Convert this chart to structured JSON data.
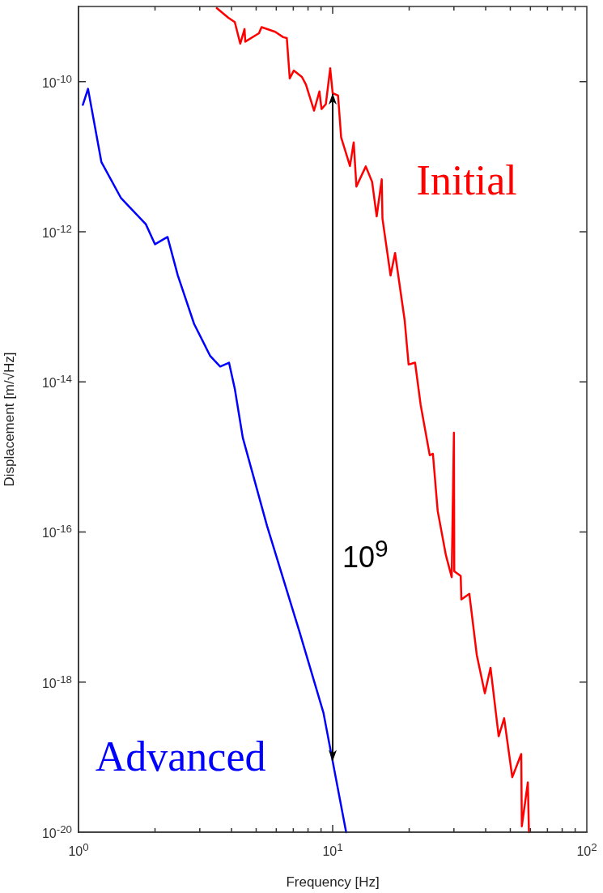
{
  "chart_data": {
    "type": "line",
    "xlabel": "Frequency [Hz]",
    "ylabel": "Displacement [m/√Hz]",
    "log": "xy",
    "legend": false,
    "marker": "none",
    "xlim": [
      1,
      100
    ],
    "ylim": [
      1e-20,
      1e-09
    ],
    "xticks": [
      {
        "value": 1,
        "label": "10$^{0}$"
      },
      {
        "value": 2,
        "label": null
      },
      {
        "value": 3,
        "label": null
      },
      {
        "value": 4,
        "label": null
      },
      {
        "value": 5,
        "label": null
      },
      {
        "value": 6,
        "label": null
      },
      {
        "value": 7,
        "label": null
      },
      {
        "value": 8,
        "label": null
      },
      {
        "value": 9,
        "label": null
      },
      {
        "value": 10,
        "label": "10$^{1}$"
      },
      {
        "value": 20,
        "label": null
      },
      {
        "value": 30,
        "label": null
      },
      {
        "value": 40,
        "label": null
      },
      {
        "value": 50,
        "label": null
      },
      {
        "value": 60,
        "label": null
      },
      {
        "value": 70,
        "label": null
      },
      {
        "value": 80,
        "label": null
      },
      {
        "value": 90,
        "label": null
      },
      {
        "value": 100,
        "label": "10$^{2}$"
      }
    ],
    "yticks": [
      {
        "value": 1e-20,
        "label": "10$^{-20}$"
      },
      {
        "value": 1e-18,
        "label": "10$^{-18}$"
      },
      {
        "value": 1e-16,
        "label": "10$^{-16}$"
      },
      {
        "value": 1e-14,
        "label": "10$^{-14}$"
      },
      {
        "value": 1e-12,
        "label": "10$^{-12}$"
      },
      {
        "value": 1e-10,
        "label": "10$^{-10}$"
      }
    ],
    "series": [
      {
        "name": "Initial",
        "color": "#ff0000",
        "x": [
          3.5,
          3.88,
          4.12,
          4.33,
          4.5,
          4.53,
          5.13,
          5.25,
          5.94,
          6.39,
          6.6,
          6.78,
          7.03,
          7.57,
          7.85,
          8.45,
          8.87,
          9.04,
          9.4,
          9.78,
          10.0,
          10.5,
          10.8,
          11.7,
          12.1,
          12.4,
          13.5,
          14.3,
          14.9,
          15.6,
          15.7,
          16.9,
          17.6,
          19.2,
          19.9,
          21.1,
          22.2,
          24.1,
          24.8,
          25.9,
          27.9,
          29.4,
          30.0,
          30.1,
          31.9,
          32.1,
          34.5,
          36.9,
          39.7,
          41.8,
          45.0,
          47.3,
          50.9,
          55.2,
          55.5,
          58.6,
          59.2
        ],
        "values": [
          9.5e-10,
          7.1e-10,
          6.2e-10,
          3.2e-10,
          5e-10,
          3.4e-10,
          4.4e-10,
          5.3e-10,
          4.6e-10,
          3.9e-10,
          3.8e-10,
          1.1e-10,
          1.4e-10,
          1.15e-10,
          9.1e-11,
          4.1e-11,
          7.4e-11,
          4.3e-11,
          5e-11,
          1.5e-10,
          7e-11,
          6.5e-11,
          1.8e-11,
          7.5e-12,
          1.55e-11,
          4e-12,
          7.4e-12,
          4.6e-12,
          1.6e-12,
          5e-12,
          1.5e-12,
          2.6e-13,
          5.2e-13,
          6.6e-14,
          1.7e-14,
          1.8e-14,
          4.9e-15,
          1.05e-15,
          1.1e-15,
          1.9e-16,
          4.9e-17,
          2.5e-17,
          2.1e-15,
          3e-17,
          2.6e-17,
          1.26e-17,
          1.5e-17,
          2.3e-18,
          7.1e-19,
          1.55e-18,
          1.9e-19,
          3.3e-19,
          5.4e-20,
          1.1e-19,
          1.2e-20,
          4.6e-20,
          1e-20
        ]
      },
      {
        "name": "Advanced",
        "color": "#0000ff",
        "x": [
          1.04,
          1.09,
          1.23,
          1.47,
          1.84,
          2.0,
          2.24,
          2.46,
          2.85,
          3.3,
          3.61,
          3.91,
          4.12,
          4.43,
          5.52,
          7.4,
          9.2,
          11.3
        ],
        "values": [
          4.9e-11,
          8e-11,
          8.5e-12,
          2.8e-12,
          1.26e-12,
          6.8e-13,
          8.5e-13,
          2.6e-13,
          5.9e-14,
          2.2e-14,
          1.6e-14,
          1.8e-14,
          8.1e-15,
          1.8e-15,
          1.2e-16,
          4.7e-18,
          3.9e-19,
          1e-20
        ]
      }
    ],
    "annotations": [
      "10$^{9}$"
    ]
  }
}
